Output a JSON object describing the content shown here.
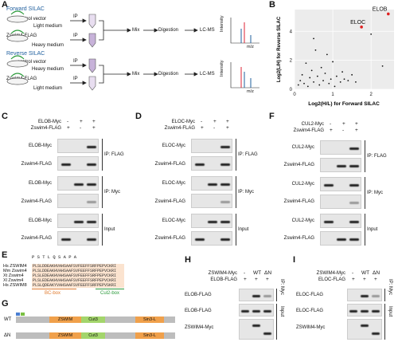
{
  "panels": {
    "A": "A",
    "B": "B",
    "C": "C",
    "D": "D",
    "E": "E",
    "F": "F",
    "G": "G",
    "H": "H",
    "I": "I"
  },
  "panelA": {
    "forward": "Forward SILAC",
    "reverse": "Reverse SILAC",
    "control": "control vector",
    "zswim": "Zswim4-FLAG",
    "light": "Light medium",
    "heavy": "Heavy medium",
    "ip": "IP",
    "mix": "Mix",
    "digestion": "Digestion",
    "lcms": "LC-MS",
    "intensity": "Intensity",
    "mz": "m/z"
  },
  "panelB": {
    "xlabel": "Log2(H/L) for Forward SILAC",
    "ylabel": "Log2(L/H) for Reverse SILAC",
    "xticks": [
      "0",
      "1",
      "2"
    ],
    "yticks": [
      "0",
      "2",
      "4"
    ],
    "labels": [
      "ELOB",
      "ELOC"
    ]
  },
  "chart_data": {
    "type": "scatter",
    "title": "",
    "xlabel": "Log2(H/L) for Forward SILAC",
    "ylabel": "Log2(L/H) for Reverse SILAC",
    "xlim": [
      0,
      2.6
    ],
    "ylim": [
      0,
      5.5
    ],
    "grid": true,
    "highlight": [
      {
        "name": "ELOB",
        "x": 2.45,
        "y": 5.2
      },
      {
        "name": "ELOC",
        "x": 1.75,
        "y": 4.3
      }
    ],
    "points": [
      [
        0.1,
        0.3
      ],
      [
        0.15,
        0.6
      ],
      [
        0.2,
        1.0
      ],
      [
        0.25,
        0.4
      ],
      [
        0.3,
        1.8
      ],
      [
        0.35,
        0.2
      ],
      [
        0.4,
        0.8
      ],
      [
        0.45,
        1.3
      ],
      [
        0.5,
        0.5
      ],
      [
        0.55,
        2.7
      ],
      [
        0.6,
        0.9
      ],
      [
        0.65,
        0.3
      ],
      [
        0.7,
        1.5
      ],
      [
        0.75,
        0.6
      ],
      [
        0.8,
        1.1
      ],
      [
        0.85,
        2.4
      ],
      [
        0.9,
        0.4
      ],
      [
        0.95,
        0.7
      ],
      [
        1.0,
        1.9
      ],
      [
        1.05,
        0.2
      ],
      [
        1.1,
        0.9
      ],
      [
        1.2,
        0.5
      ],
      [
        1.25,
        1.2
      ],
      [
        1.3,
        0.7
      ],
      [
        1.4,
        0.6
      ],
      [
        1.5,
        1.0
      ],
      [
        1.6,
        0.5
      ],
      [
        2.0,
        3.8
      ],
      [
        2.3,
        1.6
      ],
      [
        0.5,
        3.5
      ]
    ]
  },
  "panelC": {
    "rows": [
      "ELOB-Myc",
      "Zswim4-FLAG"
    ],
    "pm": [
      [
        "-",
        "+",
        "+"
      ],
      [
        "+",
        "-",
        "+"
      ]
    ],
    "blots": [
      "ELOB-Myc",
      "Zswim4-FLAG",
      "ELOB-Myc",
      "Zswim4-FLAG",
      "ELOB-Myc",
      "Zswim4-FLAG"
    ],
    "side": [
      "IP: FLAG",
      "IP: Myc",
      "Input"
    ]
  },
  "panelD": {
    "rows": [
      "ELOC-Myc",
      "Zswim4-FLAG"
    ],
    "pm": [
      [
        "-",
        "+",
        "+"
      ],
      [
        "+",
        "-",
        "+"
      ]
    ],
    "blots": [
      "ELOC-Myc",
      "Zswim4-FLAG",
      "ELOC-Myc",
      "Zswim4-FLAG",
      "ELOC-Myc",
      "Zswim4-FLAG"
    ],
    "side": [
      "IP: FLAG",
      "IP: Myc",
      "Input"
    ]
  },
  "panelF": {
    "rows": [
      "CUL2-Myc",
      "Zswim4-FLAG"
    ],
    "pm": [
      [
        "-",
        "+",
        "+"
      ],
      [
        "+",
        "-",
        "+"
      ]
    ],
    "blots": [
      "CUL2-Myc",
      "Zswim4-FLAG",
      "CUL2-Myc",
      "Zswim4-FLAG",
      "CUL2-Myc",
      "Zswim4-FLAG"
    ],
    "side": [
      "IP: FLAG",
      "IP: Myc",
      "Input"
    ]
  },
  "panelE": {
    "species": [
      "Hs ZSWIM4",
      "Mm Zswim4",
      "Xt Zswim4",
      "Xl Zswim4",
      "Hs ZSWIM8"
    ],
    "seqs": [
      "PLSLDDEAKHVAHSAAFSVFEEFFSRFPEPVCKRI",
      "PLSLDDEAKHVAHSAAFSVFEEFFSRFPEPVCKRI",
      "PLSLEDEAKHVAHSAAFSVFEEFFSRFPEPVCKRI",
      "PLSLEDEAKHVAHSAAFSVFEEFFSRFPEPVCKRI",
      "PLSLQDEAKYVAHSAAFSVFEEFFSRFPEPVSKRI"
    ],
    "bc": "BC-box",
    "cul2": "Cul2-box",
    "top": "P S T L  Q S         A P  A"
  },
  "panelG": {
    "wt": "WT",
    "dn": "ΔN",
    "domains": [
      "ZSWIM",
      "Cut3",
      "Sin3-L"
    ]
  },
  "panelH": {
    "rows": [
      "ZSWIM4-Myc",
      "ELOB-FLAG"
    ],
    "cols": [
      "-",
      "WT",
      "ΔN"
    ],
    "row2": [
      "+",
      "+",
      "+"
    ],
    "blots": [
      "ELOB-FLAG",
      "ELOB-FLAG",
      "ZSWIM4-Myc"
    ],
    "side": [
      "IP: Myc",
      "Input"
    ]
  },
  "panelI": {
    "rows": [
      "ZSWIM4-Myc",
      "ELOC-FLAG"
    ],
    "cols": [
      "-",
      "WT",
      "ΔN"
    ],
    "row2": [
      "+",
      "+",
      "+"
    ],
    "blots": [
      "ELOC-FLAG",
      "ELOC-FLAG",
      "ZSWIM4-Myc"
    ],
    "side": [
      "IP: Myc",
      "Input"
    ]
  }
}
